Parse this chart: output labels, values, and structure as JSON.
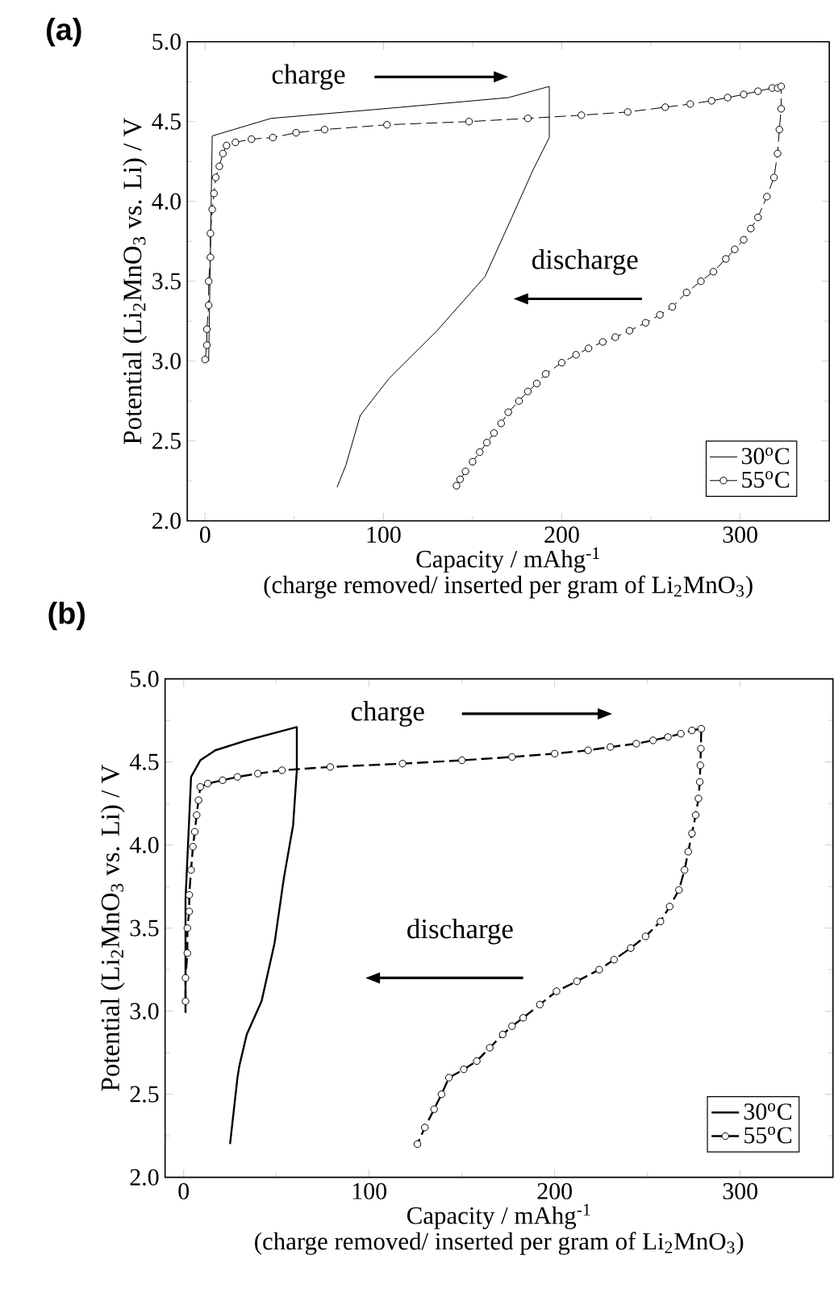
{
  "chart_data": [
    {
      "type": "line",
      "title": "(a)",
      "xlabel": "Capacity / mAhg$^{-1}$",
      "ylabel": "Potential (Li$_{2}$MnO$_{3}$ vs. Li) / V",
      "annotations": [
        "charge",
        "discharge",
        "(charge removed/ inserted per gram of Li$_{2}$MnO$_{3}$)"
      ],
      "xlim": [
        -10,
        350
      ],
      "xticks": [
        0,
        100,
        200,
        300
      ],
      "ylim": [
        2,
        5
      ],
      "yticks": [
        {
          "value": 2,
          "label": "2.0"
        },
        {
          "value": 2.5,
          "label": "2.5"
        },
        {
          "value": 3,
          "label": "3.0"
        },
        {
          "value": 3.5,
          "label": "3.5"
        },
        {
          "value": 4,
          "label": "4.0"
        },
        {
          "value": 4.5,
          "label": "4.5"
        },
        {
          "value": 5,
          "label": "5.0"
        }
      ],
      "legend": "bottom right",
      "grid": false,
      "series": [
        {
          "name": "30$^{o}$C",
          "color": "#000000",
          "line_style": "solid",
          "marker": "none",
          "x": [
            2,
            4,
            37,
            100,
            170,
            193,
            193,
            184,
            172,
            157,
            130,
            103,
            87,
            79,
            74
          ],
          "values": [
            3.0,
            4.41,
            4.52,
            4.58,
            4.65,
            4.72,
            4.4,
            4.2,
            3.9,
            3.53,
            3.19,
            2.89,
            2.66,
            2.35,
            2.21
          ]
        },
        {
          "name": "55$^{o}$C",
          "color": "#000000",
          "line_style": "dashed",
          "marker": "circle",
          "x": [
            0,
            1,
            1,
            2,
            2,
            3,
            3,
            4,
            5,
            6,
            8,
            10,
            12,
            17,
            26,
            38,
            51,
            67,
            102,
            148,
            181,
            211,
            237,
            258,
            272,
            284,
            293,
            302,
            310,
            318,
            321,
            323,
            323,
            322,
            321,
            319,
            315,
            310,
            306,
            302,
            297,
            292,
            285,
            278,
            270,
            262,
            255,
            247,
            238,
            230,
            223,
            215,
            208,
            200,
            191,
            186,
            181,
            176,
            170,
            166,
            162,
            158,
            154,
            150,
            146,
            143,
            141
          ],
          "values": [
            3.01,
            3.1,
            3.2,
            3.35,
            3.5,
            3.65,
            3.8,
            3.95,
            4.05,
            4.15,
            4.22,
            4.3,
            4.35,
            4.37,
            4.39,
            4.4,
            4.43,
            4.45,
            4.48,
            4.5,
            4.52,
            4.54,
            4.56,
            4.59,
            4.61,
            4.63,
            4.65,
            4.67,
            4.69,
            4.71,
            4.71,
            4.72,
            4.58,
            4.45,
            4.3,
            4.15,
            4.03,
            3.9,
            3.83,
            3.76,
            3.7,
            3.64,
            3.56,
            3.5,
            3.43,
            3.34,
            3.29,
            3.24,
            3.19,
            3.15,
            3.12,
            3.08,
            3.04,
            2.99,
            2.92,
            2.86,
            2.81,
            2.75,
            2.68,
            2.61,
            2.55,
            2.49,
            2.43,
            2.37,
            2.31,
            2.26,
            2.22
          ]
        }
      ]
    },
    {
      "type": "line",
      "title": "(b)",
      "xlabel": "Capacity / mAhg$^{-1}$",
      "ylabel": "Potential (Li$_{2}$MnO$_{3}$ vs. Li) / V",
      "annotations": [
        "charge",
        "discharge",
        "(charge removed/ inserted per gram of Li$_{2}$MnO$_{3}$)"
      ],
      "xlim": [
        -10,
        350
      ],
      "xticks": [
        0,
        100,
        200,
        300
      ],
      "ylim": [
        2,
        5
      ],
      "yticks": [
        {
          "value": 2,
          "label": "2.0"
        },
        {
          "value": 2.5,
          "label": "2.5"
        },
        {
          "value": 3,
          "label": "3.0"
        },
        {
          "value": 3.5,
          "label": "3.5"
        },
        {
          "value": 4,
          "label": "4.0"
        },
        {
          "value": 4.5,
          "label": "4.5"
        },
        {
          "value": 5,
          "label": "5.0"
        }
      ],
      "legend": "bottom right",
      "grid": false,
      "series": [
        {
          "name": "30$^{o}$C",
          "color": "#000000",
          "line_style": "solid",
          "marker": "none",
          "x": [
            1,
            1,
            4,
            9,
            17,
            34,
            61,
            61,
            59,
            54,
            49,
            42,
            34,
            30,
            29,
            25
          ],
          "values": [
            2.99,
            3.67,
            4.41,
            4.51,
            4.57,
            4.63,
            4.71,
            4.45,
            4.12,
            3.8,
            3.41,
            3.06,
            2.86,
            2.67,
            2.6,
            2.2
          ]
        },
        {
          "name": "55$^{o}$C",
          "color": "#000000",
          "line_style": "dashed",
          "marker": "circle",
          "x": [
            1,
            1,
            2,
            2,
            3,
            3,
            4,
            5,
            6,
            7,
            8,
            9,
            13,
            21,
            29,
            40,
            53,
            79,
            118,
            150,
            177,
            200,
            218,
            230,
            244,
            253,
            261,
            268,
            274,
            279,
            278.8,
            278.5,
            278.2,
            277.5,
            276,
            274,
            272,
            270,
            267,
            262,
            257,
            249,
            241,
            232,
            224,
            212,
            201,
            192,
            183,
            177,
            172,
            165,
            158,
            151,
            143,
            139,
            135,
            130,
            126
          ],
          "values": [
            3.06,
            3.2,
            3.35,
            3.5,
            3.6,
            3.7,
            3.85,
            3.99,
            4.08,
            4.18,
            4.27,
            4.35,
            4.37,
            4.39,
            4.41,
            4.43,
            4.45,
            4.47,
            4.49,
            4.51,
            4.53,
            4.55,
            4.57,
            4.59,
            4.61,
            4.63,
            4.65,
            4.67,
            4.69,
            4.7,
            4.58,
            4.48,
            4.38,
            4.28,
            4.18,
            4.07,
            3.96,
            3.85,
            3.73,
            3.63,
            3.54,
            3.45,
            3.38,
            3.31,
            3.25,
            3.18,
            3.12,
            3.04,
            2.96,
            2.91,
            2.86,
            2.78,
            2.7,
            2.65,
            2.6,
            2.5,
            2.41,
            2.3,
            2.2
          ]
        }
      ]
    }
  ]
}
